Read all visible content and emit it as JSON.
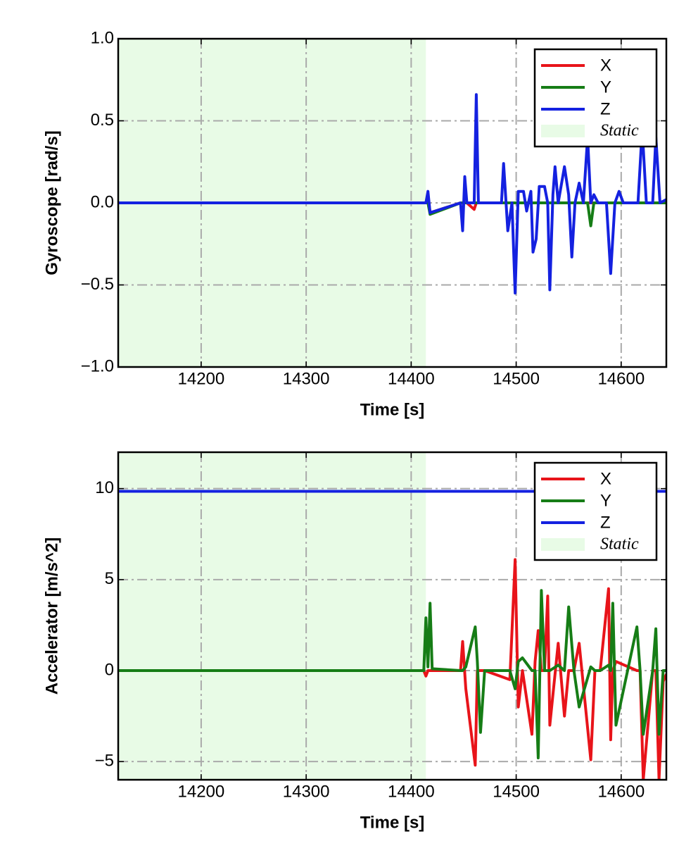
{
  "chart_data": [
    {
      "type": "line",
      "xlabel": "Time [s]",
      "ylabel": "Gyroscope [rad/s]",
      "xlim": [
        14121,
        14643
      ],
      "ylim": [
        -1,
        1
      ],
      "xticks": [
        14200,
        14300,
        14400,
        14500,
        14600
      ],
      "yticks": [
        {
          "value": -1,
          "label": "−1.0"
        },
        {
          "value": -0.5,
          "label": "−0.5"
        },
        {
          "value": 0,
          "label": "0.0"
        },
        {
          "value": 0.5,
          "label": "0.5"
        },
        {
          "value": 1,
          "label": "1.0"
        }
      ],
      "grid": true,
      "legend": "upper right",
      "shade": [
        14121,
        14414
      ],
      "shade_label": "Static",
      "shade_color": "#e8fbe6",
      "x": [
        14121,
        14414,
        14416,
        14418,
        14447,
        14449,
        14451,
        14453,
        14460,
        14462,
        14464,
        14486,
        14488,
        14492,
        14496,
        14499,
        14502,
        14507,
        14510,
        14514,
        14516,
        14519,
        14522,
        14527,
        14530,
        14532,
        14535,
        14537,
        14540,
        14546,
        14550,
        14553,
        14556,
        14560,
        14564,
        14568,
        14571,
        14574,
        14578,
        14586,
        14590,
        14594,
        14598,
        14602,
        14616,
        14620,
        14624,
        14630,
        14633,
        14637,
        14643
      ],
      "series": [
        {
          "name": "X",
          "color": "#e8141a",
          "values": [
            0,
            0,
            0.05,
            -0.06,
            0,
            0,
            0,
            0,
            -0.04,
            0,
            0,
            0,
            0,
            0,
            0,
            0,
            0,
            0,
            0,
            0,
            0,
            0,
            0,
            0,
            0,
            0,
            0,
            0,
            0,
            0,
            0,
            0,
            0,
            0,
            0,
            0,
            0,
            0,
            0,
            0,
            0,
            0,
            0,
            0,
            0,
            0,
            0,
            0,
            0,
            0,
            0
          ]
        },
        {
          "name": "Y",
          "color": "#167d16",
          "values": [
            0,
            0,
            0,
            -0.07,
            0,
            0,
            0,
            0,
            0,
            0,
            0,
            0,
            0,
            0,
            0,
            0,
            0,
            0,
            0,
            0,
            0,
            0,
            0,
            0,
            0,
            0,
            0,
            0,
            0,
            0,
            0,
            0,
            0,
            0,
            0,
            0,
            -0.14,
            0,
            0,
            0,
            0,
            0,
            0,
            0,
            0,
            0,
            0,
            0,
            0,
            0,
            0
          ]
        },
        {
          "name": "Z",
          "color": "#1421e0",
          "values": [
            0,
            0,
            0.07,
            -0.06,
            0,
            -0.17,
            0.16,
            0,
            0,
            0.66,
            0,
            0,
            0.24,
            -0.17,
            0,
            -0.55,
            0.07,
            0.07,
            -0.05,
            0.07,
            -0.3,
            -0.22,
            0.1,
            0.1,
            0,
            -0.53,
            0.05,
            0.22,
            0,
            0.22,
            0.05,
            -0.33,
            0,
            0.12,
            0,
            0.4,
            0,
            0.05,
            0,
            0,
            -0.43,
            0,
            0.07,
            0,
            0,
            0.45,
            0,
            0,
            0.4,
            0,
            0.02
          ]
        }
      ]
    },
    {
      "type": "line",
      "xlabel": "Time [s]",
      "ylabel": "Accelerator [m/s^2]",
      "xlim": [
        14121,
        14643
      ],
      "ylim": [
        -6,
        12
      ],
      "xticks": [
        14200,
        14300,
        14400,
        14500,
        14600
      ],
      "yticks": [
        {
          "value": -5,
          "label": "−5"
        },
        0,
        5,
        10
      ],
      "grid": true,
      "legend": "upper right",
      "shade": [
        14121,
        14414
      ],
      "shade_label": "Static",
      "shade_color": "#e8fbe6",
      "x": [
        14121,
        14412,
        14414,
        14416,
        14418,
        14420,
        14447,
        14449,
        14452,
        14461,
        14463,
        14466,
        14470,
        14494,
        14499,
        14502,
        14506,
        14515,
        14518,
        14521,
        14524,
        14527,
        14530,
        14532,
        14540,
        14546,
        14550,
        14555,
        14560,
        14571,
        14575,
        14580,
        14588,
        14590,
        14592,
        14595,
        14615,
        14618,
        14621,
        14630,
        14633,
        14636,
        14640,
        14643
      ],
      "series": [
        {
          "name": "X",
          "color": "#e8141a",
          "values": [
            0,
            0,
            -0.3,
            0,
            0,
            0,
            0,
            1.6,
            -1,
            -5.2,
            0,
            0,
            0,
            -0.5,
            6.1,
            -2,
            0,
            -3.5,
            0.5,
            2.2,
            0,
            0,
            4.1,
            -3,
            1.5,
            -2.5,
            0,
            0,
            1.5,
            -4.9,
            0,
            0,
            4.5,
            -3.8,
            0,
            0.5,
            0,
            0,
            -6,
            0,
            0,
            -6,
            -0.6,
            -0.2
          ]
        },
        {
          "name": "Y",
          "color": "#167d16",
          "values": [
            0,
            0,
            2.9,
            0.2,
            3.7,
            0.1,
            0,
            0,
            0.2,
            2.4,
            0.5,
            -3.4,
            0,
            0,
            -1,
            0.5,
            0.7,
            0,
            0,
            -4.8,
            4.4,
            0,
            0,
            0,
            0.3,
            0,
            3.5,
            0,
            -2,
            0.2,
            0,
            0,
            0.3,
            0,
            3.7,
            -3,
            2.4,
            0,
            -3.5,
            0,
            2.3,
            -3.5,
            0,
            0
          ]
        },
        {
          "name": "Z",
          "color": "#1421e0",
          "values": [
            9.85,
            9.85,
            9.85,
            9.85,
            9.85,
            9.85,
            9.85,
            9.85,
            9.85,
            9.85,
            9.85,
            9.85,
            9.85,
            9.85,
            9.85,
            9.85,
            9.85,
            9.85,
            9.85,
            9.85,
            9.85,
            9.85,
            9.85,
            9.85,
            9.85,
            9.85,
            9.85,
            9.85,
            9.85,
            9.85,
            9.85,
            9.85,
            9.85,
            9.85,
            9.85,
            9.85,
            9.85,
            9.85,
            9.85,
            9.85,
            9.85,
            9.85,
            9.85,
            9.85
          ]
        }
      ]
    }
  ]
}
